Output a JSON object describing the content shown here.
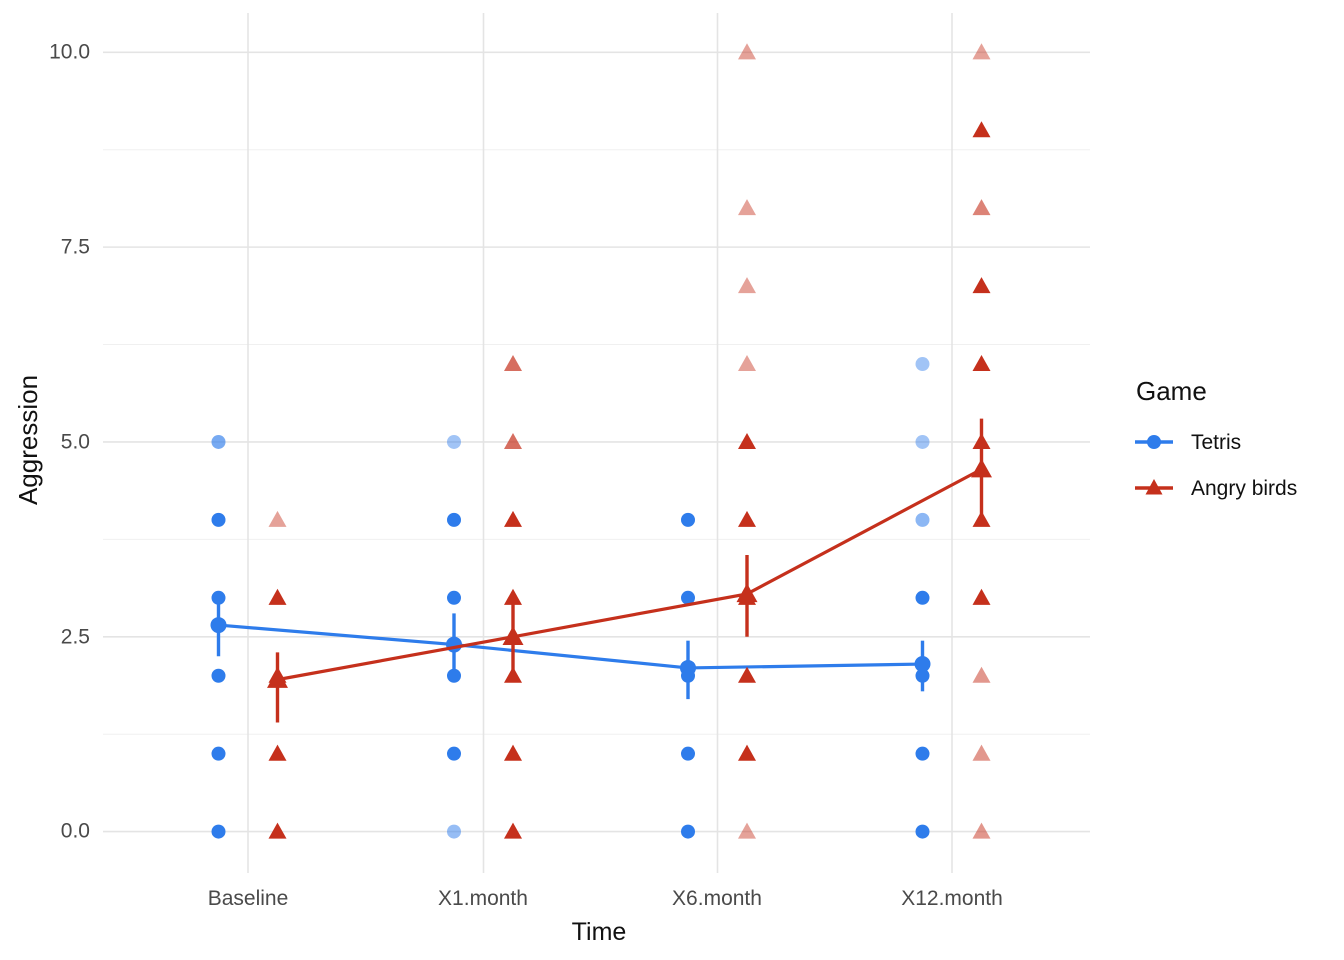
{
  "axes": {
    "x_label": "Time",
    "y_label": "Aggression",
    "x_categories": [
      "Baseline",
      "X1.month",
      "X6.month",
      "X12.month"
    ],
    "y_tick_labels": [
      "0.0",
      "2.5",
      "5.0",
      "7.5",
      "10.0"
    ]
  },
  "legend": {
    "title": "Game",
    "items": [
      {
        "label": "Tetris",
        "color": "#2E7CEB",
        "marker": "circle"
      },
      {
        "label": "Angry birds",
        "color": "#C5301C",
        "marker": "triangle"
      }
    ]
  },
  "colors": {
    "tetris_blue": "#2E7CEB",
    "angry_birds_red": "#C5301C",
    "grid_major": "#E4E4E4",
    "grid_minor": "#F0F0F0",
    "tick_text": "#4A4A4A",
    "title_text": "#111111"
  },
  "chart_data": {
    "type": "scatter",
    "subtype": "jittered points with group mean lines and error bars (pointrange)",
    "title": "",
    "xlabel": "Time",
    "ylabel": "Aggression",
    "categories": [
      "Baseline",
      "X1.month",
      "X6.month",
      "X12.month"
    ],
    "ylim": [
      0,
      10
    ],
    "y_major_ticks": [
      0.0,
      2.5,
      5.0,
      7.5,
      10.0
    ],
    "y_minor_gridlines": [
      1.25,
      3.75,
      6.25,
      8.75
    ],
    "grid": "on",
    "legend_position": "right",
    "series": [
      {
        "name": "Tetris",
        "color": "#2E7CEB",
        "marker": "circle",
        "means": [
          2.65,
          2.4,
          2.1,
          2.15
        ],
        "ci_low": [
          2.25,
          2.0,
          1.7,
          1.8
        ],
        "ci_high": [
          3.05,
          2.8,
          2.45,
          2.45
        ],
        "points": [
          {
            "cat": 0,
            "value": 5,
            "alpha": 0.65
          },
          {
            "cat": 0,
            "value": 4,
            "alpha": 1
          },
          {
            "cat": 0,
            "value": 3,
            "alpha": 1
          },
          {
            "cat": 0,
            "value": 2,
            "alpha": 1
          },
          {
            "cat": 0,
            "value": 1,
            "alpha": 1
          },
          {
            "cat": 0,
            "value": 0,
            "alpha": 1
          },
          {
            "cat": 1,
            "value": 5,
            "alpha": 0.45
          },
          {
            "cat": 1,
            "value": 4,
            "alpha": 1
          },
          {
            "cat": 1,
            "value": 3,
            "alpha": 1
          },
          {
            "cat": 1,
            "value": 2,
            "alpha": 1
          },
          {
            "cat": 1,
            "value": 1,
            "alpha": 1
          },
          {
            "cat": 1,
            "value": 0,
            "alpha": 0.5
          },
          {
            "cat": 2,
            "value": 4,
            "alpha": 1
          },
          {
            "cat": 2,
            "value": 3,
            "alpha": 1
          },
          {
            "cat": 2,
            "value": 2,
            "alpha": 1
          },
          {
            "cat": 2,
            "value": 1,
            "alpha": 1
          },
          {
            "cat": 2,
            "value": 0,
            "alpha": 1
          },
          {
            "cat": 3,
            "value": 6,
            "alpha": 0.45
          },
          {
            "cat": 3,
            "value": 5,
            "alpha": 0.45
          },
          {
            "cat": 3,
            "value": 4,
            "alpha": 0.55
          },
          {
            "cat": 3,
            "value": 3,
            "alpha": 1
          },
          {
            "cat": 3,
            "value": 2,
            "alpha": 1
          },
          {
            "cat": 3,
            "value": 1,
            "alpha": 1
          },
          {
            "cat": 3,
            "value": 0,
            "alpha": 1
          }
        ]
      },
      {
        "name": "Angry birds",
        "color": "#C5301C",
        "marker": "triangle",
        "means": [
          1.95,
          2.5,
          3.05,
          4.65
        ],
        "ci_low": [
          1.4,
          2.0,
          2.5,
          3.95
        ],
        "ci_high": [
          2.3,
          3.05,
          3.55,
          5.3
        ],
        "points": [
          {
            "cat": 0,
            "value": 4,
            "alpha": 0.45
          },
          {
            "cat": 0,
            "value": 3,
            "alpha": 1
          },
          {
            "cat": 0,
            "value": 2,
            "alpha": 1
          },
          {
            "cat": 0,
            "value": 1,
            "alpha": 1
          },
          {
            "cat": 0,
            "value": 0,
            "alpha": 1
          },
          {
            "cat": 1,
            "value": 6,
            "alpha": 0.7
          },
          {
            "cat": 1,
            "value": 5,
            "alpha": 0.7
          },
          {
            "cat": 1,
            "value": 4,
            "alpha": 1
          },
          {
            "cat": 1,
            "value": 3,
            "alpha": 1
          },
          {
            "cat": 1,
            "value": 2,
            "alpha": 1
          },
          {
            "cat": 1,
            "value": 1,
            "alpha": 1
          },
          {
            "cat": 1,
            "value": 0,
            "alpha": 1
          },
          {
            "cat": 2,
            "value": 10,
            "alpha": 0.45
          },
          {
            "cat": 2,
            "value": 8,
            "alpha": 0.45
          },
          {
            "cat": 2,
            "value": 7,
            "alpha": 0.45
          },
          {
            "cat": 2,
            "value": 6,
            "alpha": 0.45
          },
          {
            "cat": 2,
            "value": 5,
            "alpha": 1
          },
          {
            "cat": 2,
            "value": 4,
            "alpha": 1
          },
          {
            "cat": 2,
            "value": 3,
            "alpha": 1
          },
          {
            "cat": 2,
            "value": 2,
            "alpha": 1
          },
          {
            "cat": 2,
            "value": 1,
            "alpha": 1
          },
          {
            "cat": 2,
            "value": 0,
            "alpha": 0.45
          },
          {
            "cat": 3,
            "value": 10,
            "alpha": 0.45
          },
          {
            "cat": 3,
            "value": 9,
            "alpha": 1
          },
          {
            "cat": 3,
            "value": 8,
            "alpha": 0.6
          },
          {
            "cat": 3,
            "value": 7,
            "alpha": 1
          },
          {
            "cat": 3,
            "value": 6,
            "alpha": 1
          },
          {
            "cat": 3,
            "value": 5,
            "alpha": 1
          },
          {
            "cat": 3,
            "value": 4,
            "alpha": 1
          },
          {
            "cat": 3,
            "value": 3,
            "alpha": 1
          },
          {
            "cat": 3,
            "value": 2,
            "alpha": 0.5
          },
          {
            "cat": 3,
            "value": 1,
            "alpha": 0.5
          },
          {
            "cat": 3,
            "value": 0,
            "alpha": 0.5
          }
        ]
      }
    ]
  }
}
